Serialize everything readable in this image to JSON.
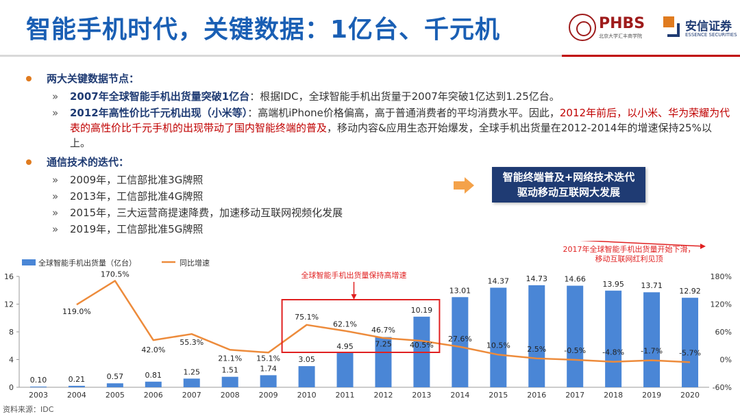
{
  "header": {
    "title": "智能手机时代，关键数据：1亿台、千元机",
    "logo_left_name": "PHBS",
    "logo_left_sub": "北京大学汇丰商学院",
    "logo_right_name": "安信证券",
    "logo_right_sub": "ESSENCE SECURITIES"
  },
  "content": {
    "section1_title": "两大关键数据节点：",
    "item1_bold": "2007年全球智能手机出货量突破1亿台",
    "item1_text": "：根据IDC，全球智能手机出货量于2007年突破1亿达到1.25亿台。",
    "item2_bold": "2012年高性价比千元机出现（小米等）",
    "item2_text_a": "：高端机iPhone价格偏高，高于普通消费者的平均消费水平。因此，",
    "item2_red": "2012年前后，以小米、华为荣耀为代表的高性价比千元手机的出现带动了国内智能终端的普及",
    "item2_text_b": "，移动内容&应用生态开始爆发，全球手机出货量在2012-2014年的增速保持25%以上。",
    "section2_title": "通信技术的迭代：",
    "tech_items": [
      "2009年，工信部批准3G牌照",
      "2013年，工信部批准4G牌照",
      "2015年，三大运营商提速降费，加速移动互联网视频化发展",
      "2019年，工信部批准5G牌照"
    ],
    "chevron": "»",
    "callout_line1": "智能终端普及+网络技术迭代",
    "callout_line2": "驱动移动互联网大发展"
  },
  "source": "资料来源：IDC",
  "colors": {
    "title_blue": "#1a5fb4",
    "bar_blue": "#4a86d6",
    "line_orange": "#ed8b3b",
    "red": "#e02020",
    "navy": "#1f3b73"
  },
  "chart_data": {
    "type": "bar+line",
    "categories": [
      "2003",
      "2004",
      "2005",
      "2006",
      "2007",
      "2008",
      "2009",
      "2010",
      "2011",
      "2012",
      "2013",
      "2014",
      "2015",
      "2016",
      "2017",
      "2018",
      "2019",
      "2020"
    ],
    "series": [
      {
        "name": "全球智能手机出货量（亿台）",
        "type": "bar",
        "axis": "left",
        "values": [
          0.1,
          0.21,
          0.57,
          0.81,
          1.25,
          1.51,
          1.74,
          3.05,
          4.95,
          7.25,
          10.19,
          13.01,
          14.37,
          14.73,
          14.66,
          13.95,
          13.71,
          12.92
        ],
        "labels": [
          "0.10",
          "0.21",
          "0.57",
          "0.81",
          "1.25",
          "1.51",
          "1.74",
          "3.05",
          "4.95",
          "7.25",
          "10.19",
          "13.01",
          "14.37",
          "14.73",
          "14.66",
          "13.95",
          "13.71",
          "12.92"
        ]
      },
      {
        "name": "同比增速",
        "type": "line",
        "axis": "right",
        "values": [
          null,
          119.0,
          170.5,
          42.0,
          55.3,
          21.1,
          15.1,
          75.1,
          62.1,
          46.7,
          40.5,
          27.6,
          10.5,
          2.5,
          -0.5,
          -4.8,
          -1.7,
          -5.7
        ],
        "labels": [
          "",
          "119.0%",
          "170.5%",
          "42.0%",
          "55.3%",
          "21.1%",
          "15.1%",
          "75.1%",
          "62.1%",
          "46.7%",
          "40.5%",
          "27.6%",
          "10.5%",
          "2.5%",
          "-0.5%",
          "-4.8%",
          "-1.7%",
          "-5.7%"
        ]
      }
    ],
    "y_left": {
      "min": 0,
      "max": 16,
      "ticks": [
        "0",
        "4",
        "8",
        "12",
        "16"
      ]
    },
    "y_right": {
      "min": -60,
      "max": 180,
      "ticks": [
        "-60%",
        "0%",
        "60%",
        "120%",
        "180%"
      ]
    },
    "annotations": {
      "box_label": "全球智能手机出货量保持高增速",
      "decline_label_1": "2017年全球智能手机出货量开始下滑，",
      "decline_label_2": "移动互联网红利见顶"
    }
  }
}
